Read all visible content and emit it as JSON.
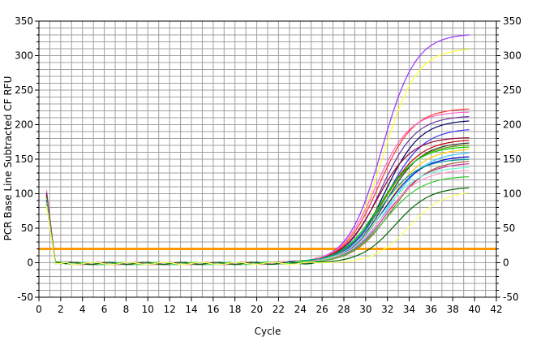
{
  "chart_data": {
    "type": "line",
    "title": "",
    "xlabel": "Cycle",
    "ylabel": "PCR Base Line Subtracted CF RFU",
    "xlim": [
      0,
      42
    ],
    "ylim": [
      -50,
      350
    ],
    "x_ticks": [
      0,
      2,
      4,
      6,
      8,
      10,
      12,
      14,
      16,
      18,
      20,
      22,
      24,
      26,
      28,
      30,
      32,
      34,
      36,
      38,
      40,
      42
    ],
    "y_ticks": [
      -50,
      0,
      50,
      100,
      150,
      200,
      250,
      300,
      350
    ],
    "grid": true,
    "secondary_y_axis": true,
    "legend": "none",
    "threshold": {
      "value": 20,
      "color": "#ff9900"
    },
    "colors": {
      "background": "#ffffff",
      "grid": "#a0a0a0",
      "axis": "#000000",
      "threshold": "#ff9900"
    },
    "sigmoid_note_removed": true,
    "series": [
      {
        "color": "#9933ff",
        "start": 105,
        "plateau": 333,
        "midpoint": 31.5,
        "slope": 1.55
      },
      {
        "color": "#ffff33",
        "start": 104,
        "plateau": 312,
        "midpoint": 31.6,
        "slope": 1.55
      },
      {
        "color": "#ff3333",
        "start": 103,
        "plateau": 225,
        "midpoint": 31.2,
        "slope": 1.6
      },
      {
        "color": "#ff66cc",
        "start": 102,
        "plateau": 220,
        "midpoint": 30.9,
        "slope": 1.55
      },
      {
        "color": "#663399",
        "start": 101,
        "plateau": 214,
        "midpoint": 31.4,
        "slope": 1.6
      },
      {
        "color": "#000066",
        "start": 100,
        "plateau": 208,
        "midpoint": 31.8,
        "slope": 1.6
      },
      {
        "color": "#3333ff",
        "start": 99,
        "plateau": 196,
        "midpoint": 31.9,
        "slope": 1.7
      },
      {
        "color": "#990033",
        "start": 98,
        "plateau": 183,
        "midpoint": 31.0,
        "slope": 1.6
      },
      {
        "color": "#cc0000",
        "start": 97,
        "plateau": 180,
        "midpoint": 31.6,
        "slope": 1.7
      },
      {
        "color": "#333333",
        "start": 96,
        "plateau": 176,
        "midpoint": 31.8,
        "slope": 1.65
      },
      {
        "color": "#669900",
        "start": 95,
        "plateau": 173,
        "midpoint": 31.5,
        "slope": 1.7
      },
      {
        "color": "#00cc00",
        "start": 94,
        "plateau": 170,
        "midpoint": 31.3,
        "slope": 1.7
      },
      {
        "color": "#ffcc00",
        "start": 93,
        "plateau": 167,
        "midpoint": 31.9,
        "slope": 1.7
      },
      {
        "color": "#33ccff",
        "start": 92,
        "plateau": 162,
        "midpoint": 32.1,
        "slope": 1.7
      },
      {
        "color": "#0000cc",
        "start": 91,
        "plateau": 156,
        "midpoint": 31.7,
        "slope": 1.7
      },
      {
        "color": "#009999",
        "start": 90,
        "plateau": 152,
        "midpoint": 31.2,
        "slope": 1.7
      },
      {
        "color": "#996633",
        "start": 89,
        "plateau": 150,
        "midpoint": 32.3,
        "slope": 1.7
      },
      {
        "color": "#cc3399",
        "start": 88,
        "plateau": 146,
        "midpoint": 32.0,
        "slope": 1.7
      },
      {
        "color": "#66ffcc",
        "start": 87,
        "plateau": 140,
        "midpoint": 31.4,
        "slope": 1.7
      },
      {
        "color": "#ff99cc",
        "start": 86,
        "plateau": 136,
        "midpoint": 31.6,
        "slope": 1.7
      },
      {
        "color": "#33cc33",
        "start": 85,
        "plateau": 127,
        "midpoint": 31.8,
        "slope": 1.7
      },
      {
        "color": "#006600",
        "start": 84,
        "plateau": 111,
        "midpoint": 32.7,
        "slope": 1.6
      },
      {
        "color": "#ffff66",
        "start": 83,
        "plateau": 106,
        "midpoint": 34.0,
        "slope": 1.6
      }
    ]
  }
}
